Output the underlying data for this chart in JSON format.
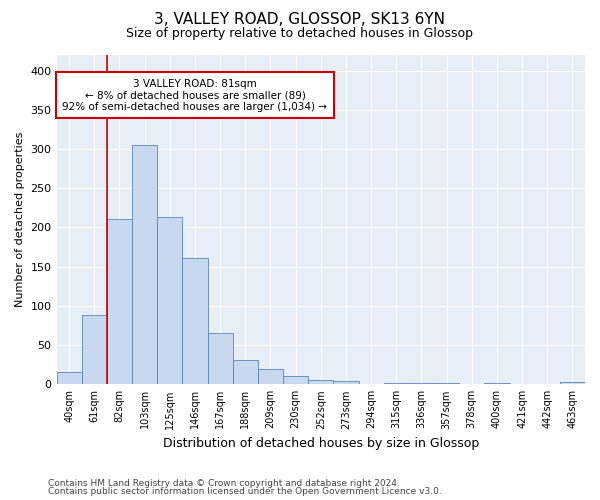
{
  "title1": "3, VALLEY ROAD, GLOSSOP, SK13 6YN",
  "title2": "Size of property relative to detached houses in Glossop",
  "xlabel": "Distribution of detached houses by size in Glossop",
  "ylabel": "Number of detached properties",
  "categories": [
    "40sqm",
    "61sqm",
    "82sqm",
    "103sqm",
    "125sqm",
    "146sqm",
    "167sqm",
    "188sqm",
    "209sqm",
    "230sqm",
    "252sqm",
    "273sqm",
    "294sqm",
    "315sqm",
    "336sqm",
    "357sqm",
    "378sqm",
    "400sqm",
    "421sqm",
    "442sqm",
    "463sqm"
  ],
  "values": [
    16,
    89,
    211,
    305,
    214,
    161,
    65,
    31,
    19,
    10,
    6,
    4,
    1,
    2,
    2,
    2,
    1,
    2,
    1,
    1,
    3
  ],
  "bar_color": "#c8d8ef",
  "bar_edge_color": "#5588bb",
  "vline_x_index": 2,
  "vline_color": "#cc0000",
  "annotation_line1": "3 VALLEY ROAD: 81sqm",
  "annotation_line2": "← 8% of detached houses are smaller (89)",
  "annotation_line3": "92% of semi-detached houses are larger (1,034) →",
  "annotation_box_color": "#ffffff",
  "annotation_box_edge": "#cc0000",
  "ylim": [
    0,
    420
  ],
  "yticks": [
    0,
    50,
    100,
    150,
    200,
    250,
    300,
    350,
    400
  ],
  "footer1": "Contains HM Land Registry data © Crown copyright and database right 2024.",
  "footer2": "Contains public sector information licensed under the Open Government Licence v3.0.",
  "bg_color": "#ffffff",
  "plot_bg_color": "#e8eef5",
  "grid_color": "#ffffff",
  "title1_fontsize": 11,
  "title2_fontsize": 9,
  "ylabel_fontsize": 8,
  "xlabel_fontsize": 9
}
